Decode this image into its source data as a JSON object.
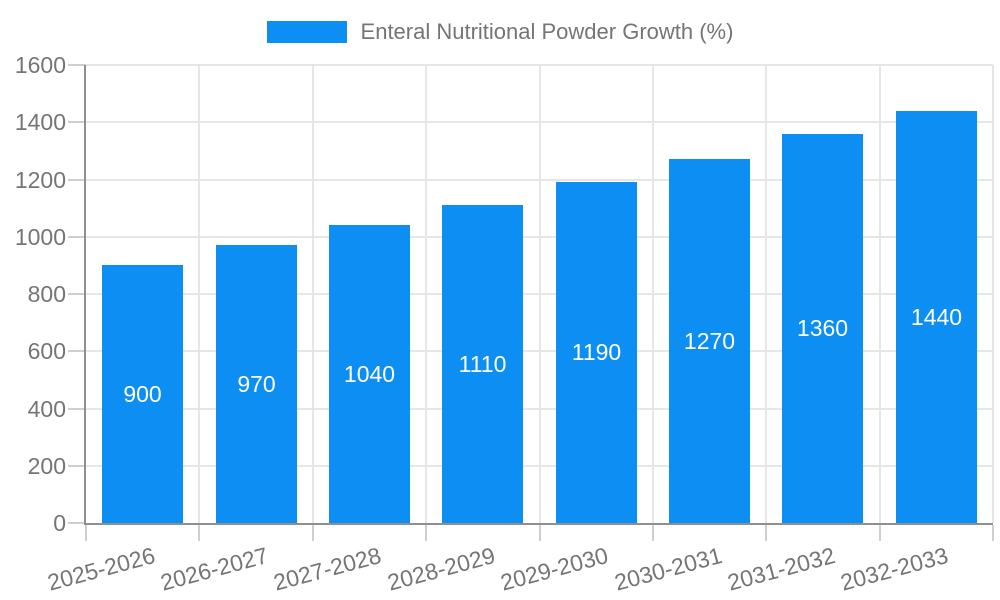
{
  "chart_data": {
    "type": "bar",
    "title": "Enteral Nutritional Powder Growth (%)",
    "legend_position": "top-center",
    "categories": [
      "2025-2026",
      "2026-2027",
      "2027-2028",
      "2028-2029",
      "2029-2030",
      "2030-2031",
      "2031-2032",
      "2032-2033"
    ],
    "series": [
      {
        "name": "Enteral Nutritional Powder Growth (%)",
        "values": [
          900,
          970,
          1040,
          1110,
          1190,
          1270,
          1360,
          1440
        ]
      }
    ],
    "value_labels": [
      "900",
      "970",
      "1040",
      "1110",
      "1190",
      "1270",
      "1360",
      "1440"
    ],
    "xlabel": "",
    "ylabel": "",
    "ylim": [
      0,
      1600
    ],
    "yticks": [
      0,
      200,
      400,
      600,
      800,
      1000,
      1200,
      1400,
      1600
    ],
    "grid": true,
    "x_label_rotation_deg": -15,
    "colors": {
      "bar": "#0d8ef2",
      "value_label": "#ffffff",
      "axis_text": "#757575",
      "axis_line": "#8f8f8f",
      "gridline": "#e6e6e6",
      "tick": "#cfcfcf"
    }
  }
}
